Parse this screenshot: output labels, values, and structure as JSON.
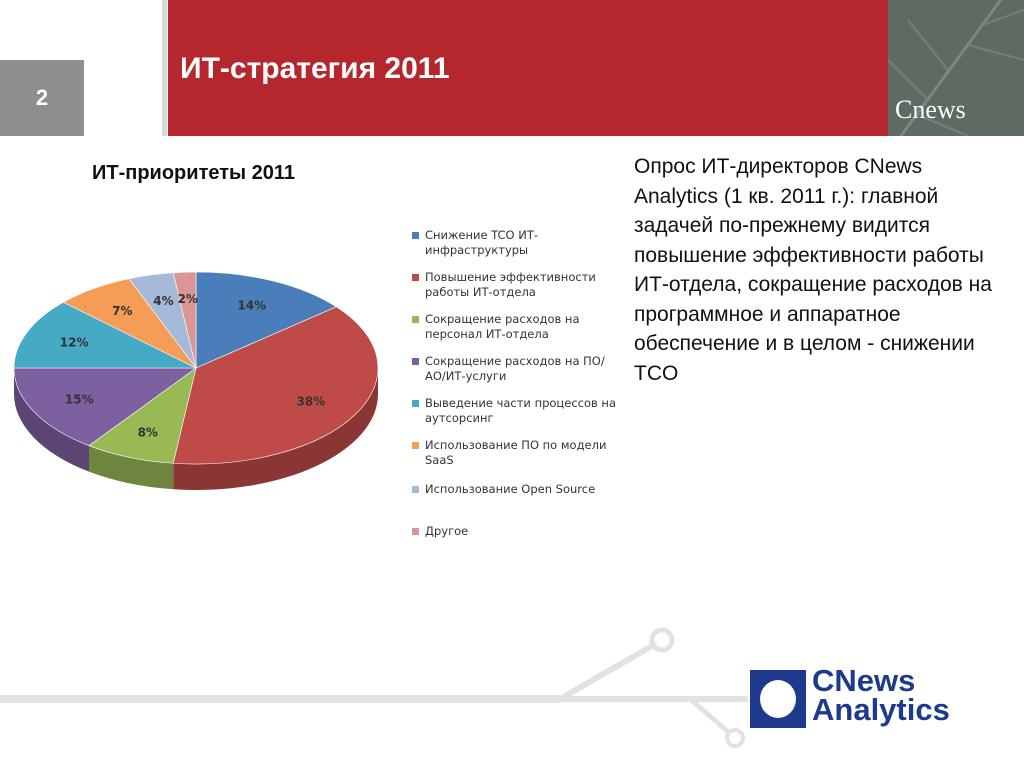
{
  "slide": {
    "number": "2",
    "title": "ИТ-стратегия 2011",
    "subtitle": "ИТ-приоритеты 2011",
    "description": "Опрос ИТ-директоров CNews Analytics (1 кв. 2011 г.): главной задачей по-прежнему видится повышение эффективности работы ИТ-отдела, сокращение расходов на программное и аппаратное обеспечение и в целом - снижении TCO",
    "header_logo": "Cnews",
    "brand_line1": "CNews",
    "brand_line2": "Analytics"
  },
  "chart_data": {
    "type": "pie",
    "title": "",
    "labels": [
      "Снижение TCO ИТ-инфраструктуры",
      "Повышение эффективности работы ИТ-отдела",
      "Сокращение расходов на персонал ИТ-отдела",
      "Сокращение расходов на ПО/АО/ИТ-услуги",
      "Выведение части процессов на аутсорсинг",
      "Использование ПО по модели SaaS",
      "Использование Open Source",
      "Другое"
    ],
    "values": [
      14,
      38,
      8,
      15,
      12,
      7,
      4,
      2
    ],
    "value_labels": [
      "14%",
      "38%",
      "8%",
      "15%",
      "12%",
      "7%",
      "4%",
      "2%"
    ],
    "colors": [
      "#4a7ebb",
      "#be4b48",
      "#98b954",
      "#7d60a0",
      "#46aac4",
      "#f59d56",
      "#a5b9d8",
      "#d99694"
    ],
    "legend_position": "right",
    "three_d": true
  }
}
